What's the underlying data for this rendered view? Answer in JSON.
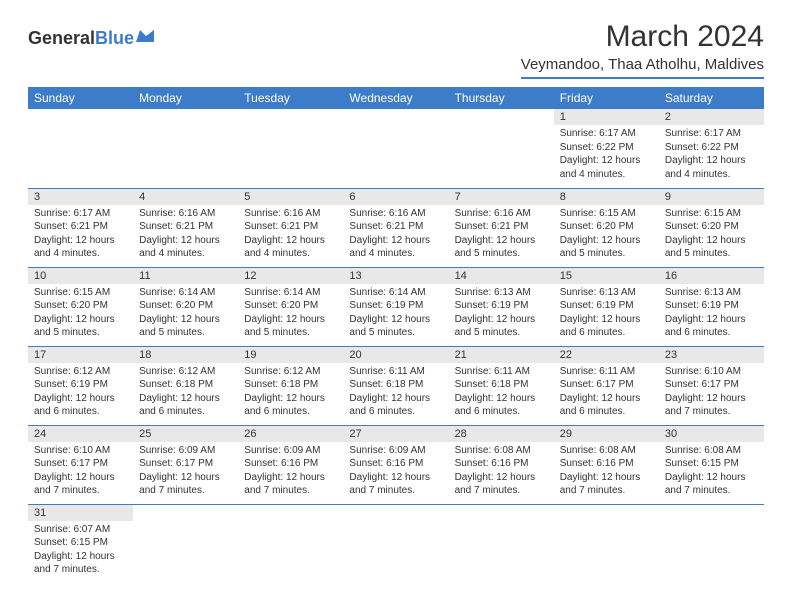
{
  "logo": {
    "text1": "General",
    "text2": "Blue"
  },
  "title": "March 2024",
  "location": "Veymandoo, Thaa Atholhu, Maldives",
  "colors": {
    "brand": "#3d7cc9",
    "daynum_bg": "#e8e8e8",
    "text": "#333333"
  },
  "weekdays": [
    "Sunday",
    "Monday",
    "Tuesday",
    "Wednesday",
    "Thursday",
    "Friday",
    "Saturday"
  ],
  "layout": {
    "first_day_col": 5,
    "days_in_month": 31
  },
  "days": {
    "1": {
      "sunrise": "6:17 AM",
      "sunset": "6:22 PM",
      "daylight": "12 hours and 4 minutes."
    },
    "2": {
      "sunrise": "6:17 AM",
      "sunset": "6:22 PM",
      "daylight": "12 hours and 4 minutes."
    },
    "3": {
      "sunrise": "6:17 AM",
      "sunset": "6:21 PM",
      "daylight": "12 hours and 4 minutes."
    },
    "4": {
      "sunrise": "6:16 AM",
      "sunset": "6:21 PM",
      "daylight": "12 hours and 4 minutes."
    },
    "5": {
      "sunrise": "6:16 AM",
      "sunset": "6:21 PM",
      "daylight": "12 hours and 4 minutes."
    },
    "6": {
      "sunrise": "6:16 AM",
      "sunset": "6:21 PM",
      "daylight": "12 hours and 4 minutes."
    },
    "7": {
      "sunrise": "6:16 AM",
      "sunset": "6:21 PM",
      "daylight": "12 hours and 5 minutes."
    },
    "8": {
      "sunrise": "6:15 AM",
      "sunset": "6:20 PM",
      "daylight": "12 hours and 5 minutes."
    },
    "9": {
      "sunrise": "6:15 AM",
      "sunset": "6:20 PM",
      "daylight": "12 hours and 5 minutes."
    },
    "10": {
      "sunrise": "6:15 AM",
      "sunset": "6:20 PM",
      "daylight": "12 hours and 5 minutes."
    },
    "11": {
      "sunrise": "6:14 AM",
      "sunset": "6:20 PM",
      "daylight": "12 hours and 5 minutes."
    },
    "12": {
      "sunrise": "6:14 AM",
      "sunset": "6:20 PM",
      "daylight": "12 hours and 5 minutes."
    },
    "13": {
      "sunrise": "6:14 AM",
      "sunset": "6:19 PM",
      "daylight": "12 hours and 5 minutes."
    },
    "14": {
      "sunrise": "6:13 AM",
      "sunset": "6:19 PM",
      "daylight": "12 hours and 5 minutes."
    },
    "15": {
      "sunrise": "6:13 AM",
      "sunset": "6:19 PM",
      "daylight": "12 hours and 6 minutes."
    },
    "16": {
      "sunrise": "6:13 AM",
      "sunset": "6:19 PM",
      "daylight": "12 hours and 6 minutes."
    },
    "17": {
      "sunrise": "6:12 AM",
      "sunset": "6:19 PM",
      "daylight": "12 hours and 6 minutes."
    },
    "18": {
      "sunrise": "6:12 AM",
      "sunset": "6:18 PM",
      "daylight": "12 hours and 6 minutes."
    },
    "19": {
      "sunrise": "6:12 AM",
      "sunset": "6:18 PM",
      "daylight": "12 hours and 6 minutes."
    },
    "20": {
      "sunrise": "6:11 AM",
      "sunset": "6:18 PM",
      "daylight": "12 hours and 6 minutes."
    },
    "21": {
      "sunrise": "6:11 AM",
      "sunset": "6:18 PM",
      "daylight": "12 hours and 6 minutes."
    },
    "22": {
      "sunrise": "6:11 AM",
      "sunset": "6:17 PM",
      "daylight": "12 hours and 6 minutes."
    },
    "23": {
      "sunrise": "6:10 AM",
      "sunset": "6:17 PM",
      "daylight": "12 hours and 7 minutes."
    },
    "24": {
      "sunrise": "6:10 AM",
      "sunset": "6:17 PM",
      "daylight": "12 hours and 7 minutes."
    },
    "25": {
      "sunrise": "6:09 AM",
      "sunset": "6:17 PM",
      "daylight": "12 hours and 7 minutes."
    },
    "26": {
      "sunrise": "6:09 AM",
      "sunset": "6:16 PM",
      "daylight": "12 hours and 7 minutes."
    },
    "27": {
      "sunrise": "6:09 AM",
      "sunset": "6:16 PM",
      "daylight": "12 hours and 7 minutes."
    },
    "28": {
      "sunrise": "6:08 AM",
      "sunset": "6:16 PM",
      "daylight": "12 hours and 7 minutes."
    },
    "29": {
      "sunrise": "6:08 AM",
      "sunset": "6:16 PM",
      "daylight": "12 hours and 7 minutes."
    },
    "30": {
      "sunrise": "6:08 AM",
      "sunset": "6:15 PM",
      "daylight": "12 hours and 7 minutes."
    },
    "31": {
      "sunrise": "6:07 AM",
      "sunset": "6:15 PM",
      "daylight": "12 hours and 7 minutes."
    }
  },
  "labels": {
    "sunrise": "Sunrise:",
    "sunset": "Sunset:",
    "daylight": "Daylight:"
  }
}
